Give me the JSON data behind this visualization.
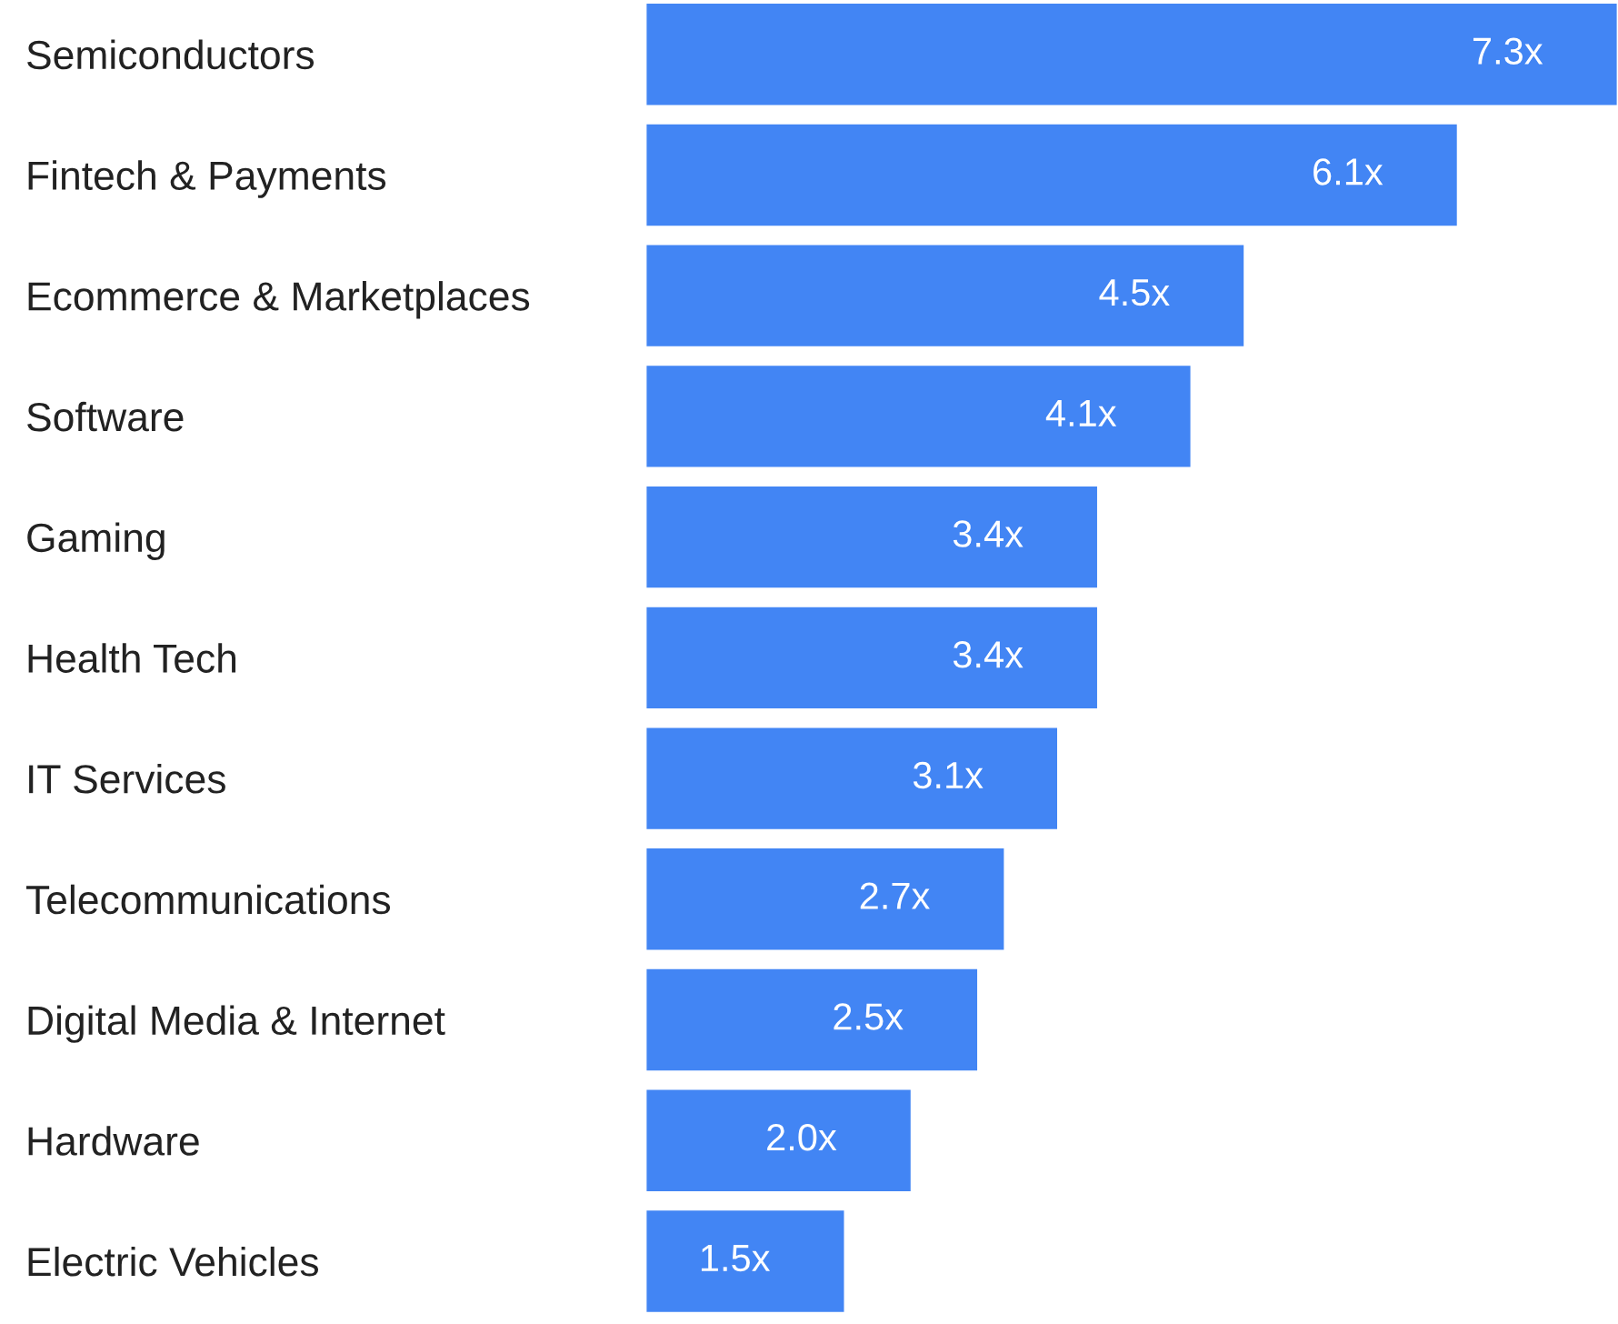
{
  "chart_data": {
    "type": "bar",
    "orientation": "horizontal",
    "categories": [
      "Semiconductors",
      "Fintech & Payments",
      "Ecommerce & Marketplaces",
      "Software",
      "Gaming",
      "Health Tech",
      "IT Services",
      "Telecommunications",
      "Digital Media & Internet",
      "Hardware",
      "Electric Vehicles"
    ],
    "values": [
      7.3,
      6.1,
      4.5,
      4.1,
      3.4,
      3.4,
      3.1,
      2.7,
      2.5,
      2.0,
      1.5
    ],
    "value_labels": [
      "7.3x",
      "6.1x",
      "4.5x",
      "4.1x",
      "3.4x",
      "3.4x",
      "3.1x",
      "2.7x",
      "2.5x",
      "2.0x",
      "1.5x"
    ],
    "color": "#4285f4",
    "xlim": [
      0,
      7.3
    ],
    "tick_labels": "y",
    "grid": false,
    "legend": false
  }
}
